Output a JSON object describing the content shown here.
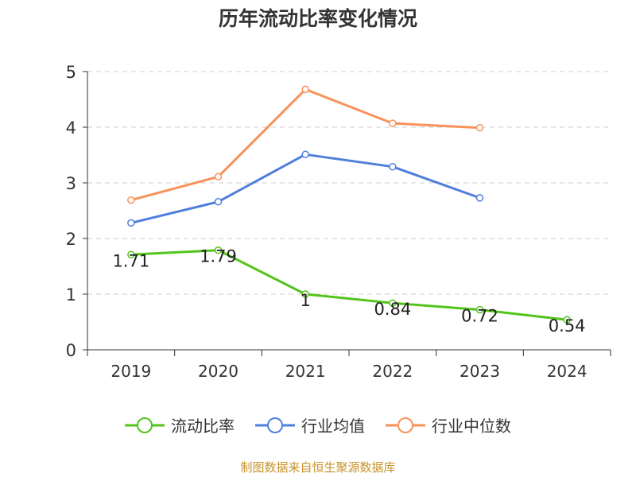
{
  "chart_data": {
    "type": "line",
    "title": "历年流动比率变化情况",
    "categories": [
      "2019",
      "2020",
      "2021",
      "2022",
      "2023",
      "2024"
    ],
    "ylim": [
      0,
      5
    ],
    "yticks": [
      "0",
      "1",
      "2",
      "3",
      "4",
      "5"
    ],
    "grid": true,
    "legend_position": "bottom",
    "series": [
      {
        "name": "流动比率",
        "color": "#52c41a",
        "values": [
          1.71,
          1.79,
          1.0,
          0.84,
          0.72,
          0.54
        ],
        "labels": [
          "1.71",
          "1.79",
          "1",
          "0.84",
          "0.72",
          "0.54"
        ]
      },
      {
        "name": "行业均值",
        "color": "#4e7fdb",
        "values": [
          2.28,
          2.66,
          3.51,
          3.29,
          2.73,
          null
        ]
      },
      {
        "name": "行业中位数",
        "color": "#f8925a",
        "values": [
          2.69,
          3.11,
          4.68,
          4.07,
          3.99,
          null
        ]
      }
    ]
  },
  "footer": {
    "source": "制图数据来自恒生聚源数据库"
  }
}
